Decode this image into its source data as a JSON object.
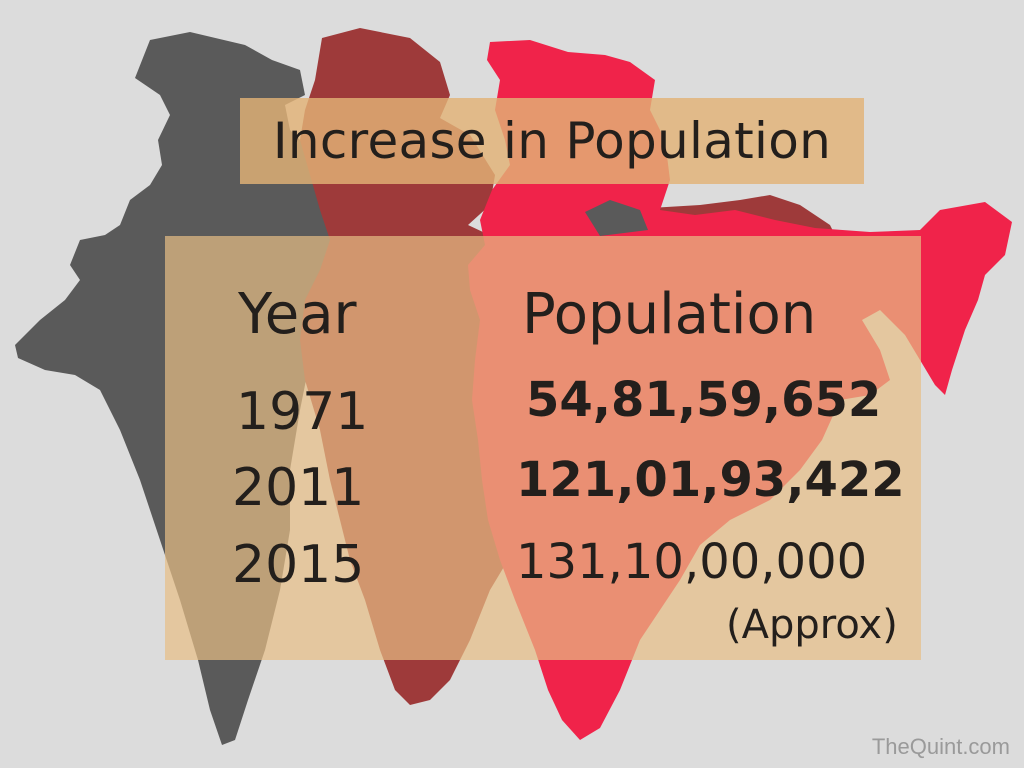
{
  "title": "Increase in Population",
  "table": {
    "headers": {
      "year": "Year",
      "population": "Population"
    },
    "rows": [
      {
        "year": "1971",
        "population": "54,81,59,652"
      },
      {
        "year": "2011",
        "population": "121,01,93,422"
      },
      {
        "year": "2015",
        "population": "131,10,00,000"
      }
    ],
    "note": "(Approx)"
  },
  "watermark": "TheQuint.com",
  "colors": {
    "background": "#dcdcdc",
    "map_1971": "#5a5a5a",
    "map_2011": "#9e3a3a",
    "map_2015": "#f0234a",
    "panel": "#e7be84",
    "title_box": "#e2b276",
    "text": "#231f1c"
  }
}
